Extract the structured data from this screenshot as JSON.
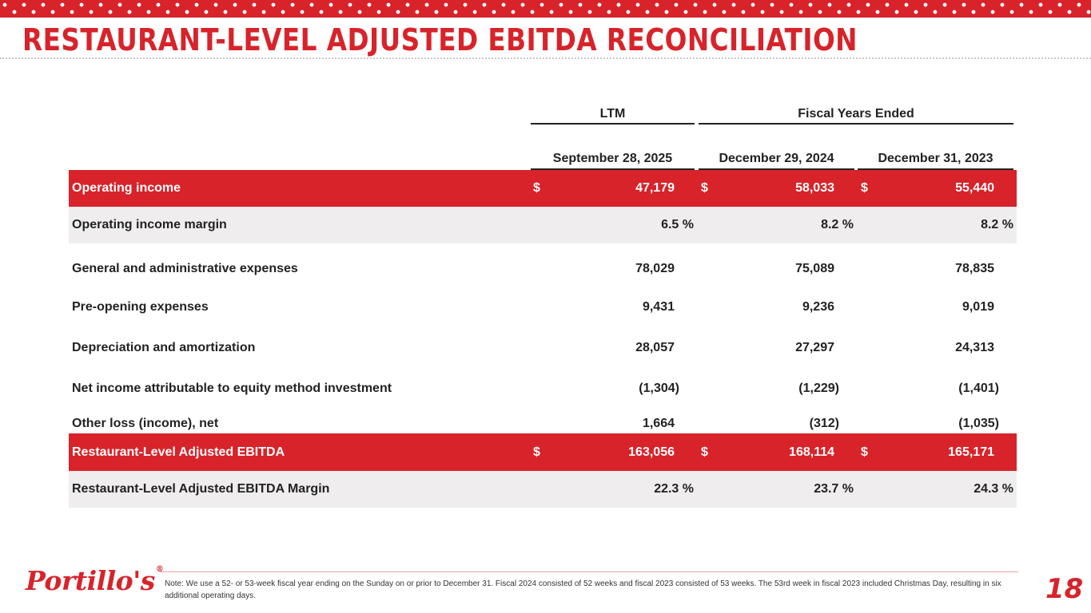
{
  "title": "RESTAURANT-LEVEL ADJUSTED EBITDA RECONCILIATION",
  "headers": {
    "group_ltm": "LTM",
    "group_fiscal": "Fiscal Years Ended",
    "col1": "September 28, 2025",
    "col2": "December 29, 2024",
    "col3": "December 31, 2023"
  },
  "rows": [
    {
      "label": "Operating income",
      "style": "red",
      "dollar": "$",
      "values": [
        "47,179",
        "58,033",
        "55,440"
      ]
    },
    {
      "label": "Operating income margin",
      "style": "grey",
      "values": [
        "6.5 %",
        "8.2 %",
        "8.2 %"
      ]
    },
    {
      "label": "General and administrative expenses",
      "style": "plain",
      "values": [
        "78,029",
        "75,089",
        "78,835"
      ]
    },
    {
      "label": "Pre-opening expenses",
      "style": "plain",
      "values": [
        "9,431",
        "9,236",
        "9,019"
      ]
    },
    {
      "label": "Depreciation and amortization",
      "style": "plain",
      "values": [
        "28,057",
        "27,297",
        "24,313"
      ]
    },
    {
      "label": "Net income attributable to equity method investment",
      "style": "plain",
      "values": [
        "(1,304)",
        "(1,229)",
        "(1,401)"
      ]
    },
    {
      "label": "Other loss (income), net",
      "style": "plain",
      "values": [
        "1,664",
        "(312)",
        "(1,035)"
      ]
    },
    {
      "label": "Restaurant-Level Adjusted EBITDA",
      "style": "red",
      "dollar": "$",
      "values": [
        "163,056",
        "168,114",
        "165,171"
      ]
    },
    {
      "label": "Restaurant-Level Adjusted EBITDA Margin",
      "style": "grey",
      "values": [
        "22.3 %",
        "23.7 %",
        "24.3 %"
      ]
    }
  ],
  "footer": {
    "logo": "Portillo's",
    "logo_mark": "®",
    "note": "Note: We use a 52- or 53-week fiscal year ending on the Sunday on or prior to December 31. Fiscal 2024 consisted of 52 weeks and fiscal 2023 consisted of 53 weeks. The 53rd week in fiscal 2023 included Christmas Day, resulting in six additional operating days.",
    "page_number": "18"
  },
  "colors": {
    "brand_red": "#d8232a",
    "row_grey": "#efeded"
  }
}
